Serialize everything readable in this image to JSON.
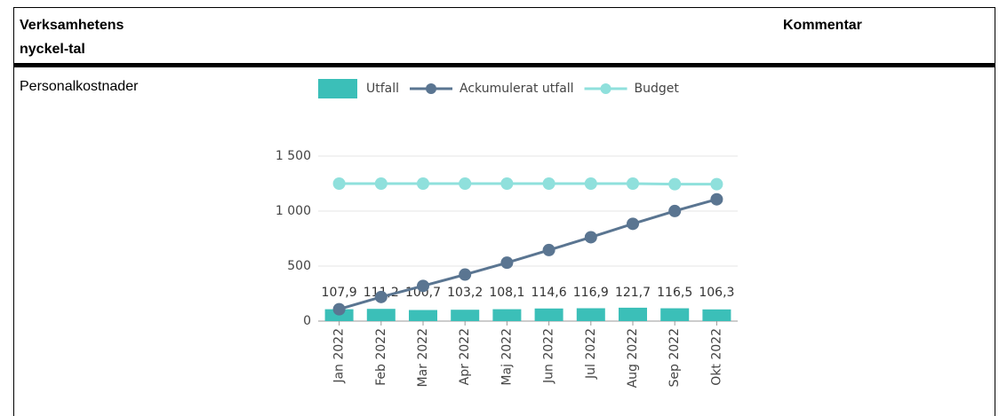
{
  "table": {
    "headers": [
      "Verksamhetens nyckel-tal",
      "Kommentar"
    ],
    "row_label": "Personalkostnader"
  },
  "chart_data": {
    "type": "bar-line",
    "categories": [
      "Jan 2022",
      "Feb 2022",
      "Mar 2022",
      "Apr 2022",
      "Maj 2022",
      "Jun 2022",
      "Jul 2022",
      "Aug 2022",
      "Sep 2022",
      "Okt 2022"
    ],
    "series": [
      {
        "name": "Utfall",
        "color": "#3bbfb8",
        "kind": "bar",
        "values": [
          107.9,
          111.2,
          100.7,
          103.2,
          108.1,
          114.6,
          116.9,
          121.7,
          116.5,
          106.3
        ],
        "value_labels": [
          "107,9",
          "111,2",
          "100,7",
          "103,2",
          "108,1",
          "114,6",
          "116,9",
          "121,7",
          "116,5",
          "106,3"
        ]
      },
      {
        "name": "Ackumulerat utfall",
        "color": "#5a7591",
        "kind": "line",
        "values": [
          107.9,
          219.1,
          319.8,
          423,
          531.1,
          645.7,
          762.6,
          884.3,
          1000.8,
          1107.1
        ]
      },
      {
        "name": "Budget",
        "color": "#8fe0dc",
        "kind": "line",
        "values": [
          1250,
          1250,
          1250,
          1250,
          1250,
          1250,
          1250,
          1250,
          1245,
          1245
        ]
      }
    ],
    "ylim": [
      0,
      1500
    ],
    "yticks": [
      0,
      500,
      {
        "value": 1000,
        "label": "1 000"
      },
      {
        "value": 1500,
        "label": "1 500"
      }
    ],
    "grid": true
  }
}
